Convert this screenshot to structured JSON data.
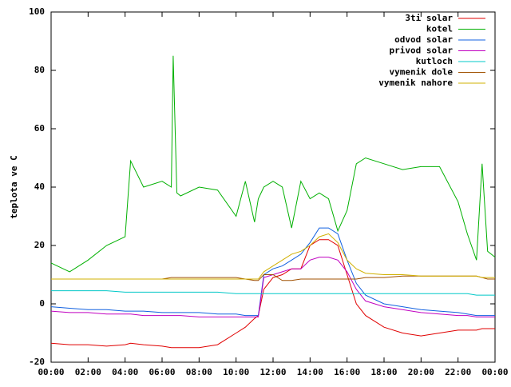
{
  "chart_data": {
    "type": "line",
    "ylabel": "teplota ve C",
    "xlim": [
      0,
      24
    ],
    "ylim": [
      -20,
      100
    ],
    "yticks": [
      -20,
      0,
      20,
      40,
      60,
      80,
      100
    ],
    "xticks": [
      {
        "value": 0,
        "label": "00:00"
      },
      {
        "value": 2,
        "label": "02:00"
      },
      {
        "value": 4,
        "label": "04:00"
      },
      {
        "value": 6,
        "label": "06:00"
      },
      {
        "value": 8,
        "label": "08:00"
      },
      {
        "value": 10,
        "label": "10:00"
      },
      {
        "value": 12,
        "label": "12:00"
      },
      {
        "value": 14,
        "label": "14:00"
      },
      {
        "value": 16,
        "label": "16:00"
      },
      {
        "value": 18,
        "label": "18:00"
      },
      {
        "value": 20,
        "label": "20:00"
      },
      {
        "value": 22,
        "label": "22:00"
      },
      {
        "value": 24,
        "label": "00:00"
      }
    ],
    "grid": false,
    "legend": "top-right",
    "x": [
      0,
      1,
      2,
      3,
      4,
      4.3,
      5,
      6,
      6.5,
      6.6,
      6.8,
      7,
      8,
      9,
      10,
      10.5,
      11,
      11.2,
      11.5,
      12,
      12.5,
      13,
      13.5,
      14,
      14.5,
      15,
      15.5,
      16,
      16.5,
      17,
      18,
      19,
      20,
      21,
      22,
      22.5,
      23,
      23.3,
      23.6,
      24
    ],
    "series": [
      {
        "name": "3ti solar",
        "color": "#e00000",
        "values": [
          -13.5,
          -14,
          -14,
          -14.5,
          -14,
          -13.5,
          -14,
          -14.5,
          -15,
          -15,
          -15,
          -15,
          -15,
          -14,
          -10,
          -8,
          -5,
          -4,
          5,
          9,
          10,
          12,
          12,
          20,
          22,
          22,
          20,
          10,
          0,
          -4,
          -8,
          -10,
          -11,
          -10,
          -9,
          -9,
          -9,
          -8.5,
          -8.5,
          -8.5
        ]
      },
      {
        "name": "kotel",
        "color": "#00b000",
        "values": [
          14,
          11,
          15,
          20,
          23,
          49,
          40,
          42,
          40,
          85,
          38,
          37,
          40,
          39,
          30,
          42,
          28,
          36,
          40,
          42,
          40,
          26,
          42,
          36,
          38,
          36,
          25,
          32,
          48,
          50,
          48,
          46,
          47,
          47,
          35,
          24,
          15,
          48,
          18,
          16
        ]
      },
      {
        "name": "odvod solar",
        "color": "#1060e0",
        "values": [
          -1,
          -1.5,
          -2,
          -2,
          -2.5,
          -2.5,
          -2.5,
          -3,
          -3,
          -3,
          -3,
          -3,
          -3,
          -3.5,
          -3.5,
          -4,
          -4,
          -4,
          10,
          12,
          13,
          15,
          17,
          21,
          26,
          26,
          24,
          15,
          7,
          3,
          0,
          -1,
          -2,
          -2.5,
          -3,
          -3.5,
          -4,
          -4,
          -4,
          -4
        ]
      },
      {
        "name": "privod solar",
        "color": "#c000c0",
        "values": [
          -2.5,
          -3,
          -3,
          -3.5,
          -3.5,
          -3.5,
          -4,
          -4,
          -4,
          -4,
          -4,
          -4,
          -4.5,
          -4.5,
          -4.5,
          -4.5,
          -4.5,
          -4.5,
          9,
          10,
          11,
          12,
          12,
          15,
          16,
          16,
          15,
          11,
          5,
          1,
          -1,
          -2,
          -3,
          -3.5,
          -4,
          -4,
          -4.5,
          -4.5,
          -4.5,
          -4.5
        ]
      },
      {
        "name": "kutloch",
        "color": "#00c8c8",
        "values": [
          4.5,
          4.5,
          4.5,
          4.5,
          4,
          4,
          4,
          4,
          4,
          4,
          4,
          4,
          4,
          4,
          3.5,
          3.5,
          3.5,
          3.5,
          3.5,
          3.5,
          3.5,
          3.5,
          3.5,
          3.5,
          3.5,
          3.5,
          3.5,
          3.5,
          3.5,
          3.5,
          3.5,
          3.5,
          3.5,
          3.5,
          3.5,
          3.5,
          3,
          3,
          3,
          3
        ]
      },
      {
        "name": "vymenik dole",
        "color": "#a05000",
        "values": [
          8.5,
          8.5,
          8.5,
          8.5,
          8.5,
          8.5,
          8.5,
          8.5,
          9,
          9,
          9,
          9,
          9,
          9,
          9,
          8.5,
          8,
          8,
          10,
          10,
          8,
          8,
          8.5,
          8.5,
          8.5,
          8.5,
          8.5,
          8.5,
          8.5,
          9,
          9,
          9.5,
          9.5,
          9.5,
          9.5,
          9.5,
          9.5,
          9,
          8.5,
          8.5
        ]
      },
      {
        "name": "vymenik nahore",
        "color": "#d0b000",
        "values": [
          8.5,
          8.5,
          8.5,
          8.5,
          8.5,
          8.5,
          8.5,
          8.5,
          8.5,
          8.5,
          8.5,
          8.5,
          8.5,
          8.5,
          8.5,
          8.5,
          8.5,
          8.5,
          11,
          13,
          15,
          17,
          18,
          20,
          23,
          24,
          21,
          15,
          12,
          10.5,
          10,
          10,
          9.5,
          9.5,
          9.5,
          9.5,
          9.5,
          9,
          9,
          9
        ]
      }
    ]
  }
}
